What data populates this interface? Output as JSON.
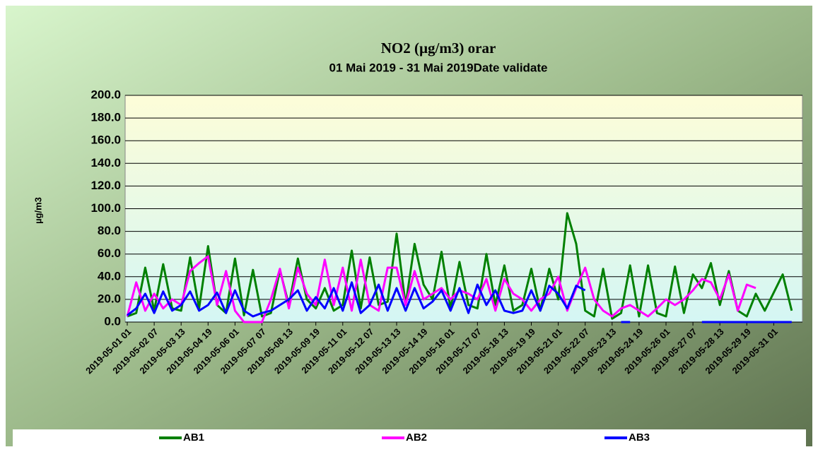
{
  "chart_data": {
    "type": "line",
    "title": "NO2 (µg/m3) orar",
    "subtitle": "01 Mai 2019 - 31 Mai 2019Date validate",
    "y_label": "µg/m3",
    "categories": [
      "2019-05-01 01",
      null,
      null,
      "2019-05-02 07",
      null,
      null,
      "2019-05-03 13",
      null,
      null,
      "2019-05-04 19",
      null,
      null,
      "2019-05-06 01",
      null,
      null,
      "2019-05-07 07",
      null,
      null,
      "2019-05-08 13",
      null,
      null,
      "2019-05-09 19",
      null,
      null,
      "2019-05-11 01",
      null,
      null,
      "2019-05-12 07",
      null,
      null,
      "2019-05-13 13",
      null,
      null,
      "2019-05-14 19",
      null,
      null,
      "2019-05-16 01",
      null,
      null,
      "2019-05-17 07",
      null,
      null,
      "2019-05-18 13",
      null,
      null,
      "2019-05-19 19",
      null,
      null,
      "2019-05-21 01",
      null,
      null,
      "2019-05-22 07",
      null,
      null,
      "2019-05-23 13",
      null,
      null,
      "2019-05-24 19",
      null,
      null,
      "2019-05-26 01",
      null,
      null,
      "2019-05-27 07",
      null,
      null,
      "2019-05-28 13",
      null,
      null,
      "2019-05-29 19",
      null,
      null,
      "2019-05-31 01",
      null,
      null
    ],
    "series": [
      {
        "name": "AB1",
        "color": "#008000",
        "values": [
          5,
          8,
          48,
          10,
          51,
          12,
          10,
          57,
          12,
          67,
          15,
          8,
          56,
          6,
          46,
          5,
          8,
          46,
          15,
          56,
          20,
          12,
          30,
          10,
          15,
          63,
          12,
          57,
          15,
          18,
          78,
          15,
          69,
          33,
          20,
          62,
          12,
          53,
          15,
          12,
          60,
          15,
          50,
          10,
          15,
          47,
          10,
          47,
          20,
          96,
          69,
          10,
          5,
          47,
          3,
          8,
          50,
          5,
          50,
          8,
          5,
          49,
          8,
          42,
          30,
          52,
          15,
          45,
          10,
          5,
          25,
          10,
          26,
          42,
          10
        ]
      },
      {
        "name": "AB2",
        "color": "#ff00ff",
        "values": [
          5,
          35,
          10,
          25,
          12,
          20,
          15,
          45,
          52,
          58,
          15,
          45,
          10,
          0,
          0,
          0,
          20,
          47,
          12,
          48,
          25,
          15,
          55,
          15,
          48,
          10,
          55,
          15,
          10,
          48,
          48,
          15,
          45,
          20,
          25,
          30,
          20,
          28,
          25,
          20,
          38,
          10,
          38,
          25,
          20,
          10,
          20,
          25,
          40,
          10,
          30,
          48,
          20,
          10,
          5,
          12,
          15,
          10,
          5,
          12,
          20,
          15,
          20,
          28,
          38,
          35,
          20,
          42,
          10,
          33,
          30,
          null,
          null,
          null,
          null
        ]
      },
      {
        "name": "AB3",
        "color": "#0000ff",
        "values": [
          6,
          12,
          25,
          8,
          27,
          10,
          15,
          27,
          10,
          15,
          26,
          8,
          28,
          10,
          5,
          8,
          10,
          15,
          20,
          28,
          10,
          22,
          12,
          30,
          10,
          35,
          8,
          15,
          33,
          10,
          30,
          10,
          30,
          12,
          18,
          28,
          10,
          30,
          8,
          33,
          15,
          28,
          10,
          8,
          10,
          28,
          10,
          32,
          25,
          12,
          32,
          28,
          null,
          null,
          null,
          0,
          0,
          null,
          null,
          null,
          null,
          null,
          null,
          null,
          0,
          0,
          0,
          0,
          0,
          0,
          0,
          0,
          0,
          0,
          0
        ]
      }
    ],
    "ylim": [
      0,
      200
    ],
    "yticks": [
      {
        "value": 0,
        "label": "0.0"
      },
      {
        "value": 20,
        "label": "20.0"
      },
      {
        "value": 40,
        "label": "40.0"
      },
      {
        "value": 60,
        "label": "60.0"
      },
      {
        "value": 80,
        "label": "80.0"
      },
      {
        "value": 100,
        "label": "100.0"
      },
      {
        "value": 120,
        "label": "120.0"
      },
      {
        "value": 140,
        "label": "140.0"
      },
      {
        "value": 160,
        "label": "160.0"
      },
      {
        "value": 180,
        "label": "180.0"
      },
      {
        "value": 200,
        "label": "200.0"
      }
    ],
    "grid": true,
    "legend": "bottom"
  }
}
